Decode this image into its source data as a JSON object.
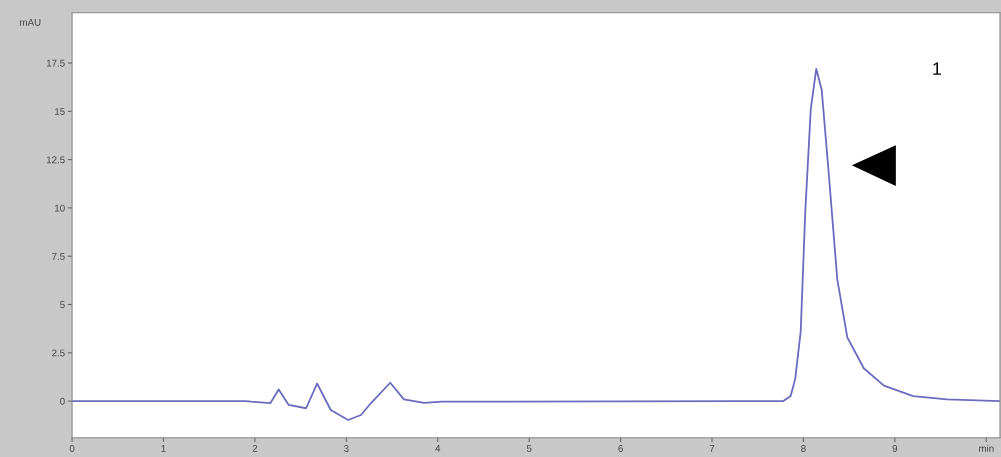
{
  "chart_data": {
    "type": "line",
    "ylabel": "mAU",
    "x": [
      0,
      1.9,
      1.96,
      2.17,
      2.26,
      2.37,
      2.56,
      2.68,
      2.83,
      3.02,
      3.16,
      3.27,
      3.48,
      3.63,
      3.85,
      4.05,
      7.31,
      7.78,
      7.86,
      7.91,
      7.97,
      8.02,
      8.08,
      8.14,
      8.2,
      8.28,
      8.37,
      8.48,
      8.66,
      8.88,
      9.2,
      9.57,
      10.15
    ],
    "series": [
      {
        "color": "#6b6bc0",
        "values": [
          0,
          0,
          -0.03,
          -0.1,
          0.6,
          -0.2,
          -0.37,
          0.91,
          -0.46,
          -0.98,
          -0.72,
          -0.1,
          0.95,
          0.09,
          -0.09,
          -0.03,
          0,
          0,
          0.26,
          1.15,
          3.6,
          9.8,
          15.1,
          17.2,
          16.1,
          11.6,
          6.3,
          3.3,
          1.7,
          0.8,
          0.26,
          0.09,
          0
        ]
      }
    ],
    "xlim": [
      0,
      10.15
    ],
    "ylim": [
      -1.9,
      20.1
    ],
    "xticks": [
      0,
      1,
      2,
      3,
      4,
      5,
      6,
      7,
      8,
      9,
      {
        "value": 10,
        "label": "min"
      }
    ],
    "yticks": [
      0,
      2.5,
      5,
      7.5,
      10,
      12.5,
      15,
      17.5
    ],
    "annotations": [
      "1"
    ],
    "grid": false,
    "legend": false
  }
}
